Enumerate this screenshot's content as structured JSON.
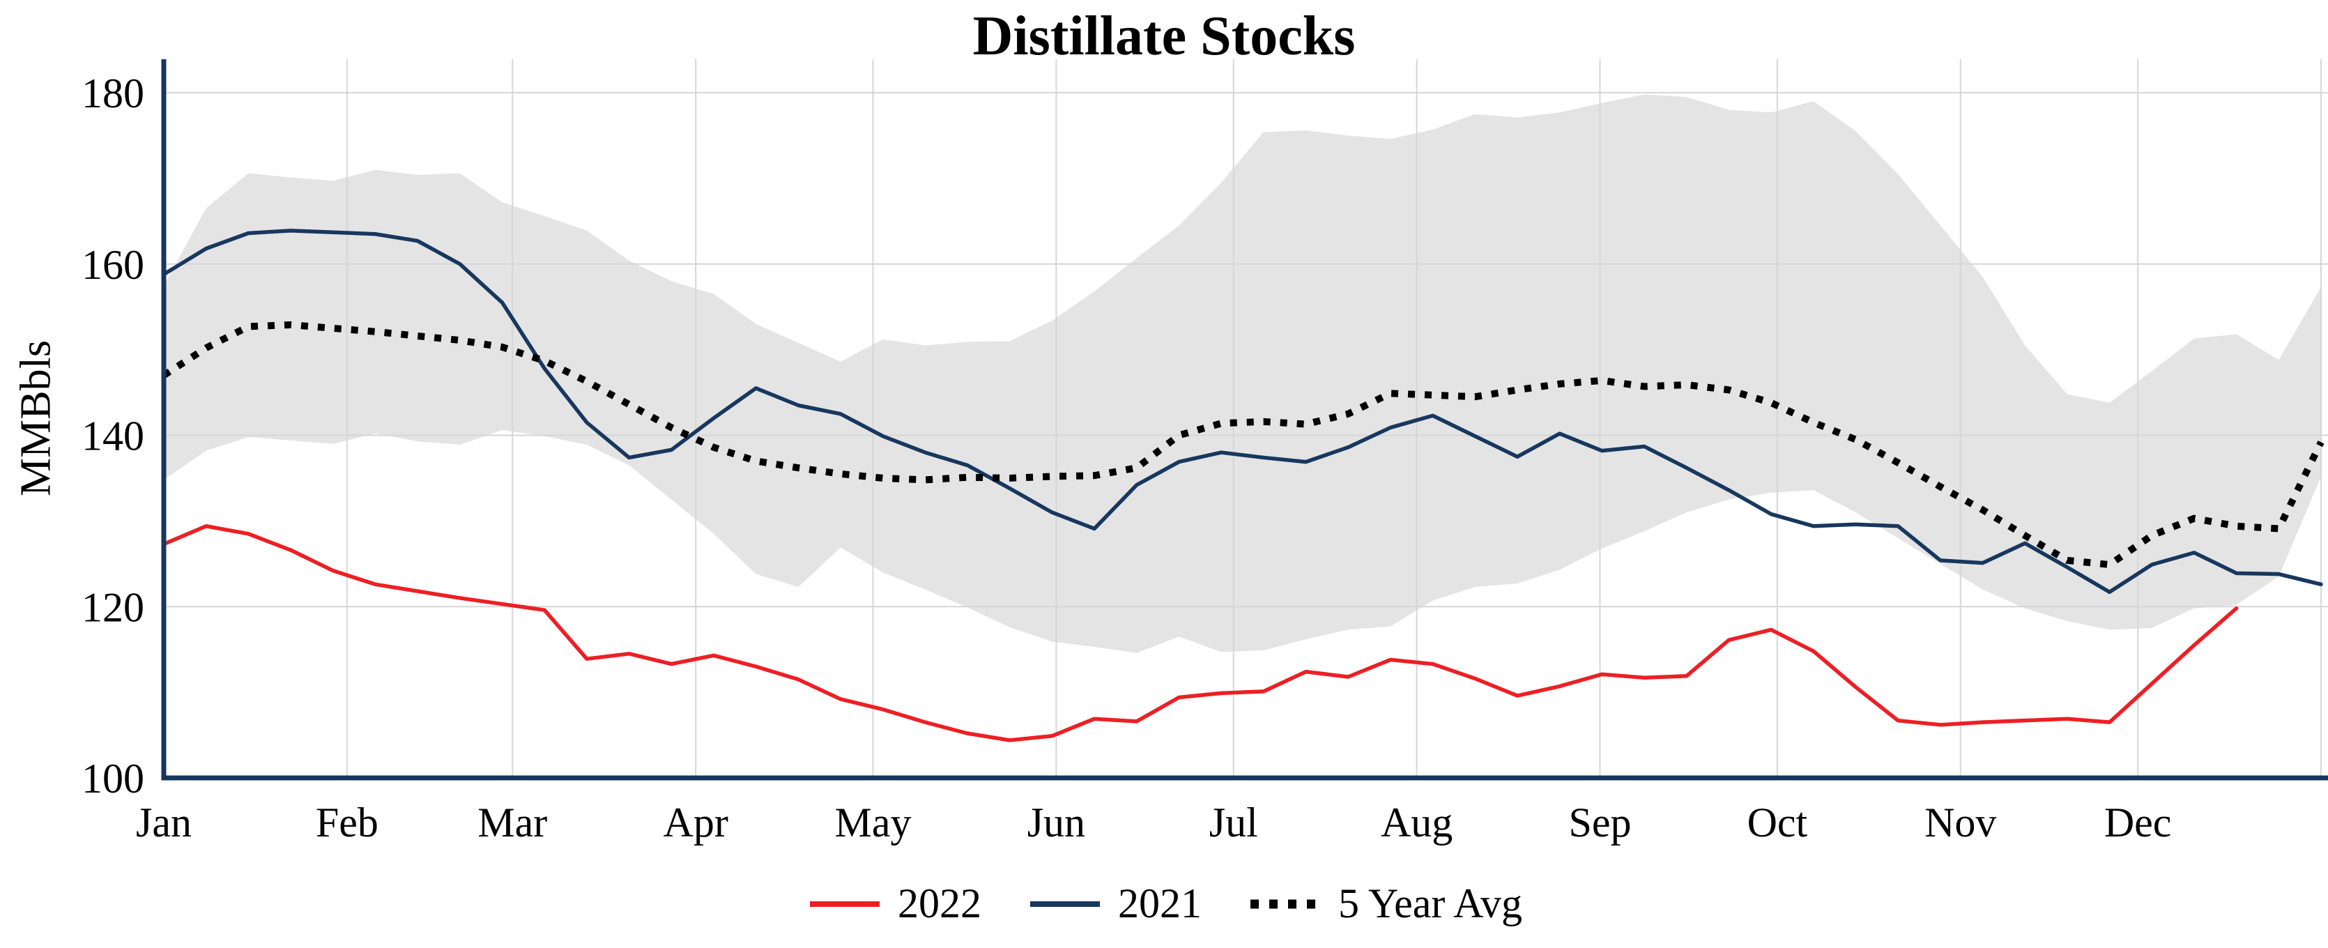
{
  "chart_data": {
    "type": "line",
    "title": "Distillate Stocks",
    "ylabel": "MMBbls",
    "ylim": [
      100,
      183
    ],
    "yticks": [
      100,
      120,
      140,
      160,
      180
    ],
    "x_months": [
      "Jan",
      "Feb",
      "Mar",
      "Apr",
      "May",
      "Jun",
      "Jul",
      "Aug",
      "Sep",
      "Oct",
      "Nov",
      "Dec"
    ],
    "x_unit": "weekly",
    "grid": true,
    "legend_position": "bottom",
    "axis_color": "#17375e",
    "grid_color": "#d6d6d6",
    "series": [
      {
        "name": "2022",
        "color": "#ed1f24",
        "style": "solid",
        "values": [
          127.3,
          129.4,
          128.5,
          126.6,
          124.2,
          122.6,
          121.8,
          121.0,
          120.3,
          119.6,
          113.9,
          114.5,
          113.3,
          114.3,
          113.0,
          111.5,
          109.2,
          108.0,
          106.5,
          105.2,
          104.4,
          104.9,
          106.9,
          106.6,
          109.4,
          109.9,
          110.1,
          112.4,
          111.8,
          113.8,
          113.3,
          111.6,
          109.6,
          110.7,
          112.1,
          111.7,
          111.9,
          116.1,
          117.3,
          114.8,
          110.6,
          106.7,
          106.2,
          106.5,
          106.7,
          106.9,
          106.5,
          111.0,
          115.5,
          119.8
        ]
      },
      {
        "name": "2021",
        "color": "#17375e",
        "style": "solid",
        "values": [
          158.8,
          161.8,
          163.6,
          163.9,
          163.7,
          163.5,
          162.7,
          160.0,
          155.5,
          147.8,
          141.5,
          137.4,
          138.3,
          142.0,
          145.5,
          143.5,
          142.5,
          139.9,
          138.0,
          136.5,
          133.8,
          131.0,
          129.1,
          134.2,
          136.9,
          138.0,
          137.4,
          136.9,
          138.6,
          140.9,
          142.3,
          139.9,
          137.5,
          140.2,
          138.2,
          138.7,
          136.2,
          133.6,
          130.8,
          129.4,
          129.6,
          129.4,
          125.4,
          125.1,
          127.4,
          124.6,
          121.7,
          124.9,
          126.3,
          123.9,
          123.8,
          122.6
        ]
      },
      {
        "name": "5 Year Avg",
        "color": "#000000",
        "style": "dotted",
        "values": [
          147.0,
          150.2,
          152.7,
          152.9,
          152.5,
          152.1,
          151.6,
          151.1,
          150.3,
          148.7,
          146.3,
          143.6,
          140.9,
          138.6,
          137.0,
          136.2,
          135.5,
          135.0,
          134.8,
          135.1,
          135.0,
          135.2,
          135.3,
          136.2,
          140.0,
          141.4,
          141.6,
          141.3,
          142.5,
          144.9,
          144.7,
          144.5,
          145.3,
          146.0,
          146.4,
          145.7,
          145.9,
          145.3,
          143.8,
          141.5,
          139.5,
          136.8,
          134.0,
          131.3,
          128.3,
          125.4,
          124.9,
          128.3,
          130.3,
          129.4,
          129.1,
          139.2
        ]
      }
    ],
    "range_band": {
      "color": "#e4e4e4",
      "upper": [
        157.5,
        166.5,
        170.6,
        170.1,
        169.7,
        171.0,
        170.4,
        170.6,
        167.2,
        165.6,
        163.9,
        160.4,
        158.0,
        156.5,
        153.0,
        150.8,
        148.6,
        151.2,
        150.5,
        150.9,
        151.0,
        153.4,
        156.8,
        160.7,
        164.5,
        169.5,
        175.4,
        175.6,
        175.0,
        174.6,
        175.7,
        177.5,
        177.1,
        177.7,
        178.8,
        179.8,
        179.5,
        178.0,
        177.7,
        179.0,
        175.5,
        170.5,
        164.5,
        158.5,
        150.5,
        144.8,
        143.8,
        147.5,
        151.3,
        151.8,
        148.8,
        157.3
      ],
      "lower": [
        134.8,
        138.2,
        139.8,
        139.4,
        139.0,
        140.2,
        139.3,
        138.9,
        140.6,
        139.9,
        138.9,
        136.5,
        132.5,
        128.5,
        123.8,
        122.3,
        126.9,
        124.0,
        122.0,
        119.9,
        117.6,
        115.9,
        115.3,
        114.6,
        116.5,
        114.7,
        114.9,
        116.2,
        117.3,
        117.7,
        120.7,
        122.3,
        122.7,
        124.3,
        126.8,
        128.8,
        131.0,
        132.5,
        133.3,
        133.6,
        131.0,
        128.0,
        125.0,
        122.0,
        119.8,
        118.3,
        117.3,
        117.5,
        119.8,
        120.2,
        123.5,
        135.2
      ]
    }
  }
}
